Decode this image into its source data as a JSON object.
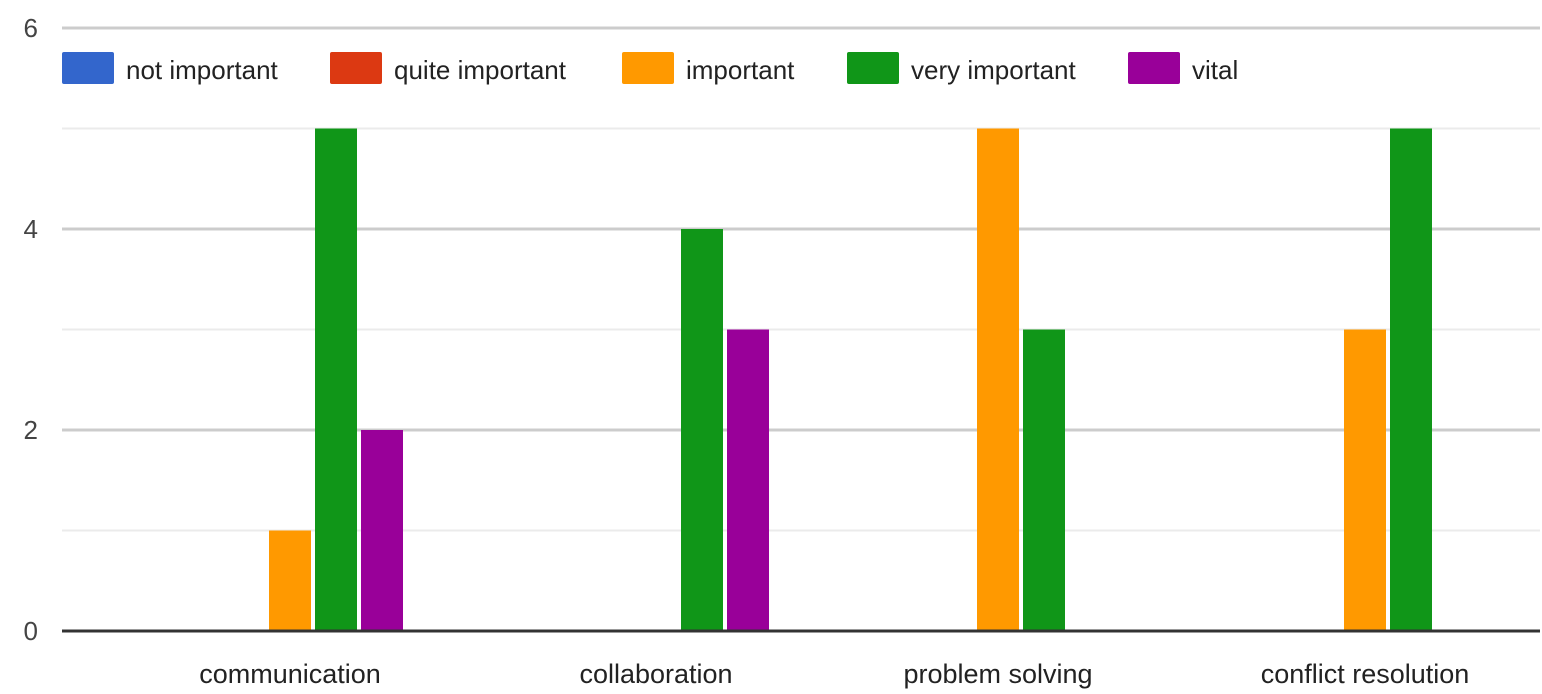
{
  "chart_data": {
    "type": "bar",
    "categories": [
      "communication",
      "collaboration",
      "problem solving",
      "conflict resolution"
    ],
    "series": [
      {
        "name": "not important",
        "color": "#3366cc",
        "values": [
          0,
          0,
          0,
          0
        ]
      },
      {
        "name": "quite important",
        "color": "#dc3912",
        "values": [
          0,
          0,
          0,
          0
        ]
      },
      {
        "name": "important",
        "color": "#ff9900",
        "values": [
          1,
          0,
          5,
          3
        ]
      },
      {
        "name": "very important",
        "color": "#109618",
        "values": [
          5,
          4,
          3,
          5
        ]
      },
      {
        "name": "vital",
        "color": "#990099",
        "values": [
          2,
          3,
          0,
          0
        ]
      }
    ],
    "ylim": [
      0,
      6
    ],
    "yticks": [
      0,
      2,
      4,
      6
    ],
    "grid": true,
    "legend_position": "top"
  }
}
